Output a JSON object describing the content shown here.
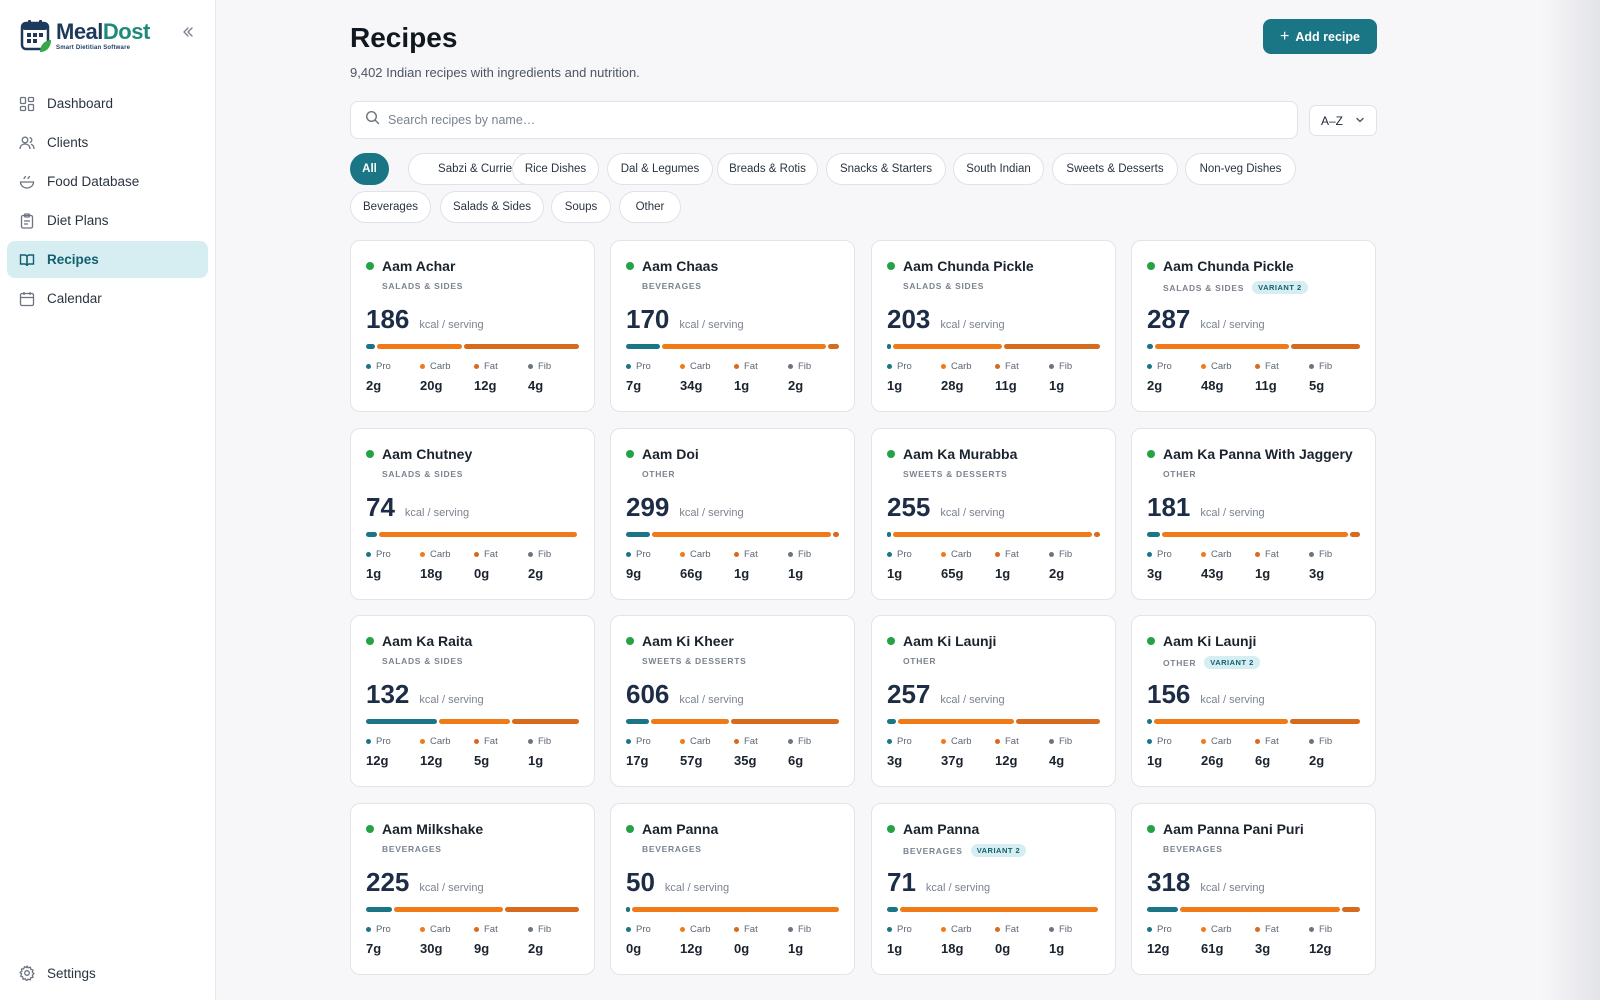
{
  "app": {
    "name_part1": "Meal",
    "name_part2": "Dost",
    "tagline": "Smart Dietitian Software"
  },
  "sidebar": {
    "items": [
      {
        "label": "Dashboard",
        "icon": "grid-icon",
        "active": false
      },
      {
        "label": "Clients",
        "icon": "users-icon",
        "active": false
      },
      {
        "label": "Food Database",
        "icon": "bowl-icon",
        "active": false
      },
      {
        "label": "Diet Plans",
        "icon": "clipboard-icon",
        "active": false
      },
      {
        "label": "Recipes",
        "icon": "book-icon",
        "active": true
      },
      {
        "label": "Calendar",
        "icon": "calendar-icon",
        "active": false
      }
    ],
    "settings_label": "Settings"
  },
  "header": {
    "title": "Recipes",
    "subtitle": "9,402 Indian recipes with ingredients and nutrition.",
    "add_label": "Add recipe"
  },
  "search": {
    "placeholder": "Search recipes by name…",
    "value": ""
  },
  "sort": {
    "value": "A–Z"
  },
  "categories": [
    "All",
    "Sabzi & Curries",
    "Rice Dishes",
    "Dal & Legumes",
    "Breads & Rotis",
    "Snacks & Starters",
    "South Indian",
    "Sweets & Desserts",
    "Non-veg Dishes",
    "Beverages",
    "Salads & Sides",
    "Soups",
    "Other"
  ],
  "active_category": "All",
  "card_labels": {
    "kcal_unit": "kcal / serving",
    "pro": "Pro",
    "carb": "Carb",
    "fat": "Fat",
    "fib": "Fib"
  },
  "colors": {
    "accent": "#1a7584",
    "protein": "#1a7584",
    "carb": "#f07a18",
    "fat": "#d66a1d",
    "fiber": "#6b7480",
    "veg_dot": "#25a244"
  },
  "recipes": [
    {
      "name": "Aam Achar",
      "category": "SALADS & SIDES",
      "variant": "",
      "kcal": "186",
      "pro": "2g",
      "carb": "20g",
      "fat": "12g",
      "fib": "4g"
    },
    {
      "name": "Aam Chaas",
      "category": "BEVERAGES",
      "variant": "",
      "kcal": "170",
      "pro": "7g",
      "carb": "34g",
      "fat": "1g",
      "fib": "2g"
    },
    {
      "name": "Aam Chunda Pickle",
      "category": "SALADS & SIDES",
      "variant": "",
      "kcal": "203",
      "pro": "1g",
      "carb": "28g",
      "fat": "11g",
      "fib": "1g"
    },
    {
      "name": "Aam Chunda Pickle",
      "category": "SALADS & SIDES",
      "variant": "VARIANT 2",
      "kcal": "287",
      "pro": "2g",
      "carb": "48g",
      "fat": "11g",
      "fib": "5g"
    },
    {
      "name": "Aam Chutney",
      "category": "SALADS & SIDES",
      "variant": "",
      "kcal": "74",
      "pro": "1g",
      "carb": "18g",
      "fat": "0g",
      "fib": "2g"
    },
    {
      "name": "Aam Doi",
      "category": "OTHER",
      "variant": "",
      "kcal": "299",
      "pro": "9g",
      "carb": "66g",
      "fat": "1g",
      "fib": "1g"
    },
    {
      "name": "Aam Ka Murabba",
      "category": "SWEETS & DESSERTS",
      "variant": "",
      "kcal": "255",
      "pro": "1g",
      "carb": "65g",
      "fat": "1g",
      "fib": "2g"
    },
    {
      "name": "Aam Ka Panna With Jaggery",
      "category": "OTHER",
      "variant": "",
      "kcal": "181",
      "pro": "3g",
      "carb": "43g",
      "fat": "1g",
      "fib": "3g"
    },
    {
      "name": "Aam Ka Raita",
      "category": "SALADS & SIDES",
      "variant": "",
      "kcal": "132",
      "pro": "12g",
      "carb": "12g",
      "fat": "5g",
      "fib": "1g"
    },
    {
      "name": "Aam Ki Kheer",
      "category": "SWEETS & DESSERTS",
      "variant": "",
      "kcal": "606",
      "pro": "17g",
      "carb": "57g",
      "fat": "35g",
      "fib": "6g"
    },
    {
      "name": "Aam Ki Launji",
      "category": "OTHER",
      "variant": "",
      "kcal": "257",
      "pro": "3g",
      "carb": "37g",
      "fat": "12g",
      "fib": "4g"
    },
    {
      "name": "Aam Ki Launji",
      "category": "OTHER",
      "variant": "VARIANT 2",
      "kcal": "156",
      "pro": "1g",
      "carb": "26g",
      "fat": "6g",
      "fib": "2g"
    },
    {
      "name": "Aam Milkshake",
      "category": "BEVERAGES",
      "variant": "",
      "kcal": "225",
      "pro": "7g",
      "carb": "30g",
      "fat": "9g",
      "fib": "2g"
    },
    {
      "name": "Aam Panna",
      "category": "BEVERAGES",
      "variant": "",
      "kcal": "50",
      "pro": "0g",
      "carb": "12g",
      "fat": "0g",
      "fib": "1g"
    },
    {
      "name": "Aam Panna",
      "category": "BEVERAGES",
      "variant": "VARIANT 2",
      "kcal": "71",
      "pro": "1g",
      "carb": "18g",
      "fat": "0g",
      "fib": "1g"
    },
    {
      "name": "Aam Panna Pani Puri",
      "category": "BEVERAGES",
      "variant": "",
      "kcal": "318",
      "pro": "12g",
      "carb": "61g",
      "fat": "3g",
      "fib": "12g"
    }
  ]
}
